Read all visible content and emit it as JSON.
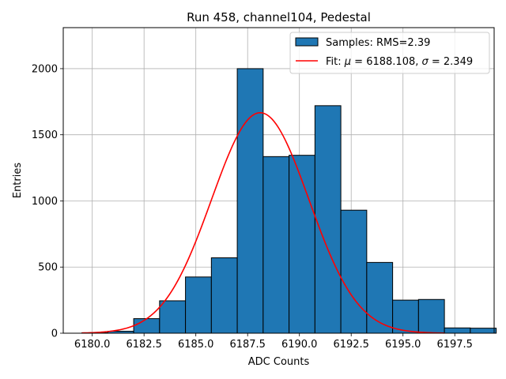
{
  "chart_data": {
    "type": "bar",
    "title": "Run 458, channel104, Pedestal",
    "xlabel": "ADC Counts",
    "ylabel": "Entries",
    "xlim": [
      6178.6,
      6199.4
    ],
    "ylim": [
      0,
      2310
    ],
    "xticks": [
      6180.0,
      6182.5,
      6185.0,
      6187.5,
      6190.0,
      6192.5,
      6195.0,
      6197.5
    ],
    "xtick_labels": [
      "6180.0",
      "6182.5",
      "6185.0",
      "6187.5",
      "6190.0",
      "6192.5",
      "6195.0",
      "6197.5"
    ],
    "yticks": [
      0,
      500,
      1000,
      1500,
      2000
    ],
    "ytick_labels": [
      "0",
      "500",
      "1000",
      "1500",
      "2000"
    ],
    "grid": true,
    "legend_position": "top-right",
    "histogram": {
      "name": "Samples: RMS=2.39",
      "color": "#1f77b4",
      "edge_color": "#000000",
      "bins": [
        {
          "left": 6179.5,
          "right": 6180.75,
          "count": 3
        },
        {
          "left": 6180.75,
          "right": 6182.0,
          "count": 15
        },
        {
          "left": 6182.0,
          "right": 6183.25,
          "count": 110
        },
        {
          "left": 6183.25,
          "right": 6184.5,
          "count": 245
        },
        {
          "left": 6184.5,
          "right": 6185.75,
          "count": 425
        },
        {
          "left": 6185.75,
          "right": 6187.0,
          "count": 570
        },
        {
          "left": 6187.0,
          "right": 6188.25,
          "count": 2000
        },
        {
          "left": 6188.25,
          "right": 6189.5,
          "count": 1335
        },
        {
          "left": 6189.5,
          "right": 6190.75,
          "count": 1345
        },
        {
          "left": 6190.75,
          "right": 6192.0,
          "count": 1720
        },
        {
          "left": 6192.0,
          "right": 6193.25,
          "count": 930
        },
        {
          "left": 6193.25,
          "right": 6194.5,
          "count": 535
        },
        {
          "left": 6194.5,
          "right": 6195.75,
          "count": 250
        },
        {
          "left": 6195.75,
          "right": 6197.0,
          "count": 255
        },
        {
          "left": 6197.0,
          "right": 6198.25,
          "count": 40
        },
        {
          "left": 6198.25,
          "right": 6199.5,
          "count": 38
        }
      ]
    },
    "fit": {
      "name": "Fit: μ = 6188.108, σ = 2.349",
      "label_prefix": "Fit: ",
      "mu_symbol": "μ",
      "mu_text": " = 6188.108, ",
      "sigma_symbol": "σ",
      "sigma_text": " = 2.349",
      "color": "#ff0000",
      "mu": 6188.108,
      "sigma": 2.349,
      "amplitude": 1667,
      "x_range": [
        6179.5,
        6197.0
      ]
    }
  }
}
